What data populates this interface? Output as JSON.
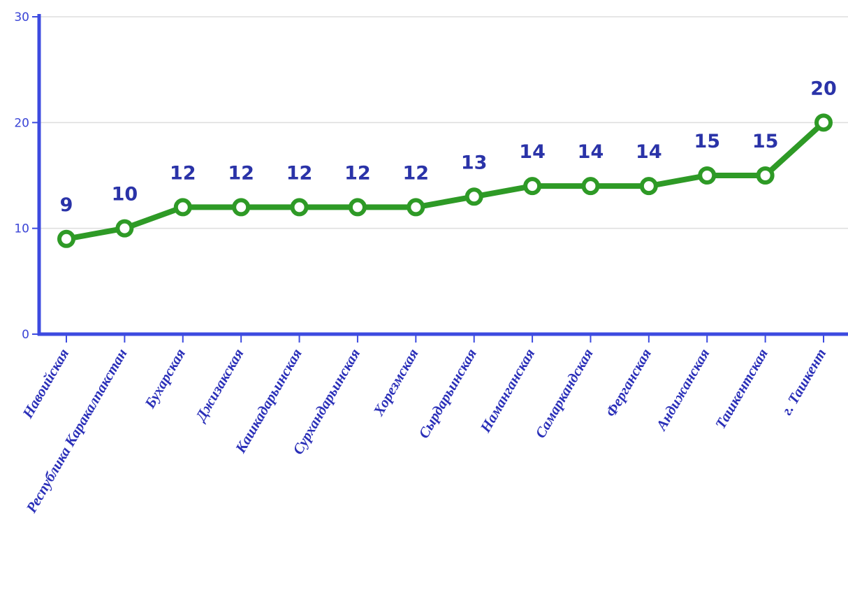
{
  "chart_data": {
    "type": "line",
    "title": "",
    "xlabel": "",
    "ylabel": "",
    "categories": [
      "Навоийская",
      "Республика Каракалпакстан",
      "Бухарская",
      "Джизакская",
      "Кашкадарьинская",
      "Сурхандарьинская",
      "Хорезмская",
      "Сырдарьинская",
      "Наманганская",
      "Самаркандская",
      "Ферганская",
      "Андижанская",
      "Ташкентская",
      "г. Ташкент"
    ],
    "series": [
      {
        "values": [
          9,
          10,
          12,
          12,
          12,
          12,
          12,
          13,
          14,
          14,
          14,
          15,
          15,
          20
        ]
      }
    ],
    "ylim": [
      0,
      30
    ],
    "yticks": [
      0,
      10,
      20,
      30
    ],
    "grid": true,
    "legend": "none",
    "data_labels": true,
    "colors": {
      "line": "#2e9a26",
      "marker_fill": "#ffffff",
      "axis": "#3d4be0",
      "grid": "#dddddd",
      "tick_text": "#3a44d6",
      "data_label": "#2a33a8",
      "category_text": "#2a2fb8"
    }
  }
}
